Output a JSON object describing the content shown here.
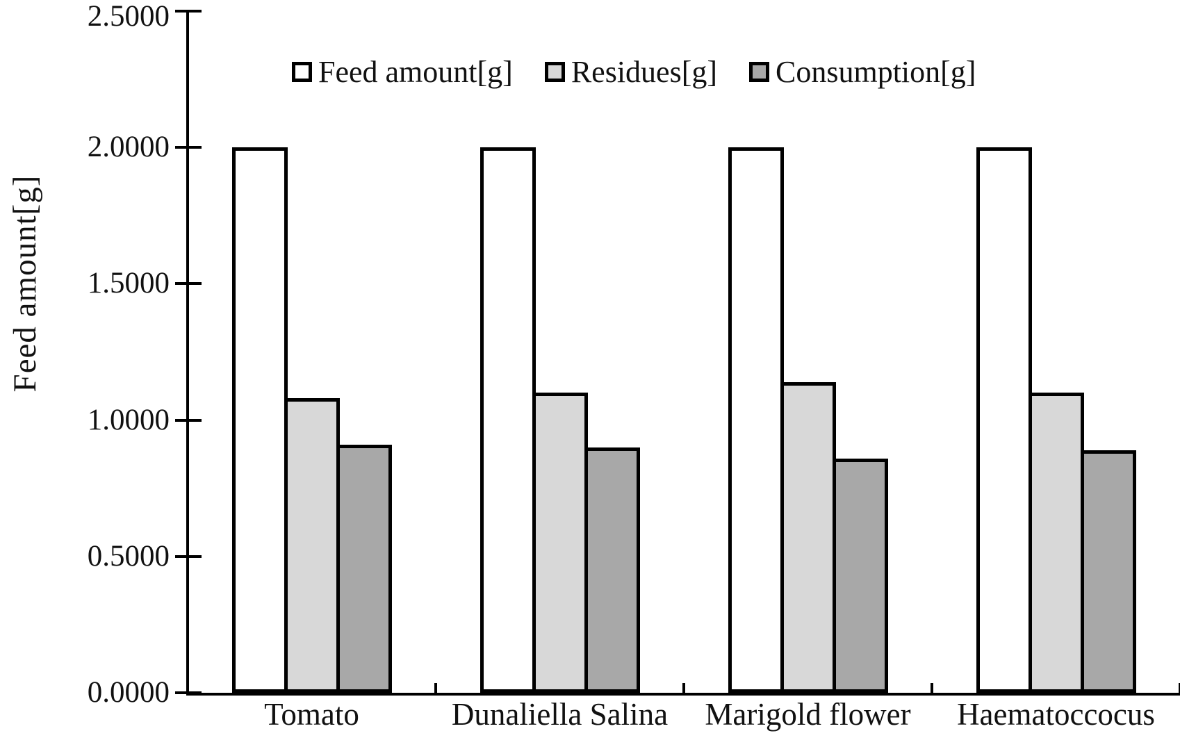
{
  "chart_data": {
    "type": "bar",
    "title": "",
    "ylabel": "Feed amount[g]",
    "xlabel": "",
    "categories": [
      "Tomato",
      "Dunaliella Salina",
      "Marigold flower",
      "Haematoccocus"
    ],
    "series": [
      {
        "name": "Feed amount[g]",
        "color": "#ffffff",
        "values": [
          2.0,
          2.0,
          2.0,
          2.0
        ]
      },
      {
        "name": "Residues[g]",
        "color": "#d8d8d8",
        "values": [
          1.08,
          1.1,
          1.14,
          1.1
        ]
      },
      {
        "name": "Consumption[g]",
        "color": "#a8a8a8",
        "values": [
          0.91,
          0.9,
          0.86,
          0.89
        ]
      }
    ],
    "ylim": [
      0.0,
      2.5
    ],
    "y_ticks": [
      "0.0000",
      "0.5000",
      "1.0000",
      "1.5000",
      "2.0000",
      "2.5000"
    ],
    "y_tick_values": [
      0.0,
      0.5,
      1.0,
      1.5,
      2.0,
      2.5
    ],
    "grid": "off",
    "legend_position": "top-inside",
    "bar_edge_color": "#000000",
    "axis_color": "#000000",
    "background_color": "#ffffff",
    "text_color": "#111111"
  }
}
